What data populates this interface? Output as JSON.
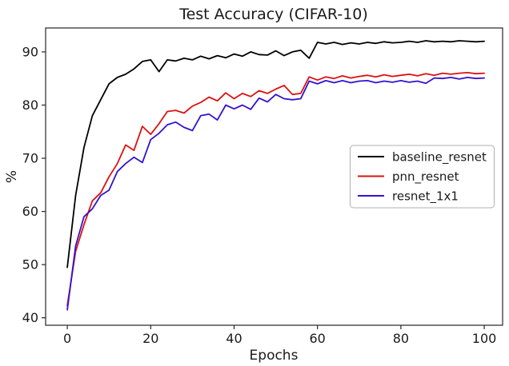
{
  "page": {
    "background": "#ffffff"
  },
  "chart_data": {
    "type": "line",
    "title": "Test Accuracy (CIFAR-10)",
    "xlabel": "Epochs",
    "ylabel": "%",
    "xlim": [
      -5.2,
      104.4
    ],
    "ylim": [
      38.6,
      94.5
    ],
    "x_ticks": [
      0,
      20,
      40,
      60,
      80,
      100
    ],
    "y_ticks": [
      40,
      50,
      60,
      70,
      80,
      90
    ],
    "grid": false,
    "legend_position": "center right",
    "axis_color": "#262626",
    "x": [
      0,
      2,
      4,
      6,
      8,
      10,
      12,
      14,
      16,
      18,
      20,
      22,
      24,
      26,
      28,
      30,
      32,
      34,
      36,
      38,
      40,
      42,
      44,
      46,
      48,
      50,
      52,
      54,
      56,
      58,
      60,
      62,
      64,
      66,
      68,
      70,
      72,
      74,
      76,
      78,
      80,
      82,
      84,
      86,
      88,
      90,
      92,
      94,
      96,
      98,
      100
    ],
    "series": [
      {
        "name": "baseline_resnet",
        "color": "#000000",
        "values": [
          49.5,
          63.0,
          72.0,
          78.0,
          81.0,
          84.0,
          85.2,
          85.8,
          86.8,
          88.2,
          88.5,
          86.3,
          88.5,
          88.3,
          88.8,
          88.5,
          89.2,
          88.7,
          89.3,
          88.9,
          89.6,
          89.2,
          90.0,
          89.5,
          89.4,
          90.2,
          89.3,
          90.0,
          90.3,
          88.8,
          91.8,
          91.5,
          91.8,
          91.4,
          91.7,
          91.5,
          91.8,
          91.6,
          91.9,
          91.7,
          91.8,
          92.0,
          91.8,
          92.1,
          91.9,
          92.0,
          91.9,
          92.1,
          92.0,
          91.9,
          92.0
        ]
      },
      {
        "name": "pnn_resnet",
        "color": "#dd1111",
        "values": [
          42.3,
          52.5,
          57.5,
          62.0,
          63.5,
          66.5,
          69.0,
          72.5,
          71.5,
          76.0,
          74.5,
          76.5,
          78.8,
          79.0,
          78.5,
          79.8,
          80.5,
          81.5,
          80.8,
          82.3,
          81.2,
          82.2,
          81.6,
          82.7,
          82.2,
          83.0,
          83.7,
          82.0,
          82.2,
          85.3,
          84.7,
          85.3,
          85.0,
          85.5,
          85.1,
          85.4,
          85.6,
          85.3,
          85.7,
          85.4,
          85.6,
          85.8,
          85.5,
          85.9,
          85.6,
          86.0,
          85.8,
          86.0,
          86.1,
          85.9,
          86.0
        ]
      },
      {
        "name": "resnet_1x1",
        "color": "#3412cf",
        "values": [
          41.5,
          53.5,
          59.0,
          60.5,
          63.0,
          64.0,
          67.5,
          69.0,
          70.2,
          69.2,
          73.5,
          74.7,
          76.3,
          76.8,
          75.8,
          75.2,
          78.0,
          78.3,
          77.2,
          80.0,
          79.3,
          80.0,
          79.2,
          81.3,
          80.6,
          82.0,
          81.2,
          81.0,
          81.2,
          84.5,
          84.0,
          84.6,
          84.2,
          84.6,
          84.2,
          84.5,
          84.6,
          84.2,
          84.5,
          84.3,
          84.6,
          84.3,
          84.5,
          84.1,
          85.1,
          85.0,
          85.2,
          84.9,
          85.2,
          85.0,
          85.1
        ]
      }
    ]
  }
}
